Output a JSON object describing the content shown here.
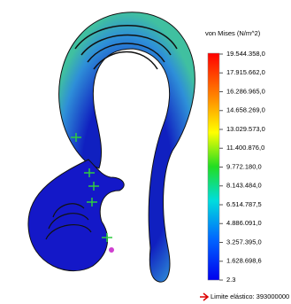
{
  "legend": {
    "title": "von Mises (N/m^2)",
    "labels": [
      "19.544.358,0",
      "17.915.662,0",
      "16.286.965,0",
      "14.658.269,0",
      "13.029.573,0",
      "11.400.876,0",
      "9.772.180,0",
      "8.143.484,0",
      "6.514.787,5",
      "4.886.091,0",
      "3.257.395,0",
      "1.628.698,6",
      "2.3"
    ]
  },
  "yield_note": "Limite elástico: 393000000"
}
